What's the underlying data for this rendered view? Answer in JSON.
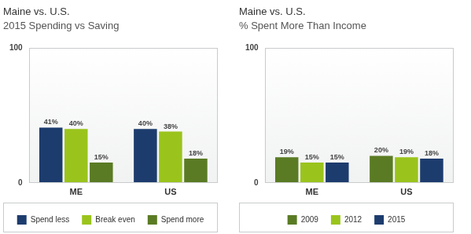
{
  "chart_data": [
    {
      "type": "bar",
      "title": "Maine vs. U.S.",
      "subtitle": "2015 Spending vs Saving",
      "categories": [
        "ME",
        "US"
      ],
      "series": [
        {
          "name": "Spend less",
          "color": "#1d3c6e",
          "values": [
            41,
            40
          ],
          "value_labels": [
            "41%",
            "40%"
          ]
        },
        {
          "name": "Break even",
          "color": "#9ac41c",
          "values": [
            40,
            38
          ],
          "value_labels": [
            "40%",
            "38%"
          ]
        },
        {
          "name": "Spend more",
          "color": "#5a7b24",
          "values": [
            15,
            18
          ],
          "value_labels": [
            "15%",
            "18%"
          ]
        }
      ],
      "ylim": [
        0,
        100
      ],
      "yticks": [
        0,
        100
      ],
      "grid": false,
      "legend": "bottom",
      "data_labels": true
    },
    {
      "type": "bar",
      "title": "Maine vs. U.S.",
      "subtitle": "% Spent More Than Income",
      "categories": [
        "ME",
        "US"
      ],
      "series": [
        {
          "name": "2009",
          "color": "#5a7b24",
          "values": [
            19,
            20
          ],
          "value_labels": [
            "19%",
            "20%"
          ]
        },
        {
          "name": "2012",
          "color": "#9ac41c",
          "values": [
            15,
            19
          ],
          "value_labels": [
            "15%",
            "19%"
          ]
        },
        {
          "name": "2015",
          "color": "#1d3c6e",
          "values": [
            15,
            18
          ],
          "value_labels": [
            "15%",
            "18%"
          ]
        }
      ],
      "ylim": [
        0,
        100
      ],
      "yticks": [
        0,
        100
      ],
      "grid": false,
      "legend": "bottom",
      "data_labels": true
    }
  ]
}
